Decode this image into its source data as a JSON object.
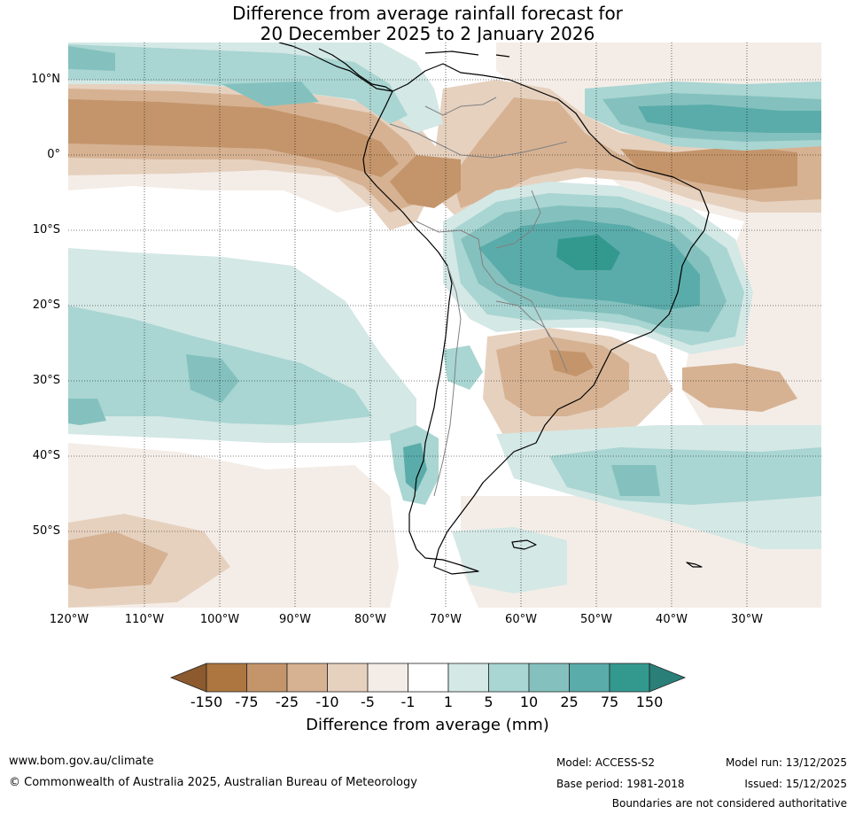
{
  "title": {
    "line1": "Difference from average rainfall forecast for",
    "line2": "20 December 2025 to 2 January 2026"
  },
  "map": {
    "lat_labels": [
      "10°N",
      "0°",
      "10°S",
      "20°S",
      "30°S",
      "40°S",
      "50°S"
    ],
    "lon_labels": [
      "120°W",
      "110°W",
      "100°W",
      "90°W",
      "80°W",
      "70°W",
      "60°W",
      "50°W",
      "40°W",
      "30°W"
    ]
  },
  "colorbar": {
    "ticks": [
      "-150",
      "-75",
      "-25",
      "-10",
      "-5",
      "-1",
      "1",
      "5",
      "10",
      "25",
      "75",
      "150"
    ],
    "colors": [
      "#8c5a2e",
      "#ad7640",
      "#c4956b",
      "#d6b293",
      "#e6d1bf",
      "#f4ede7",
      "#ffffff",
      "#d4e8e6",
      "#a9d5d2",
      "#84c1be",
      "#5aacaa",
      "#33998f",
      "#2a7f79"
    ],
    "label": "Difference from average (mm)"
  },
  "footer": {
    "website": "www.bom.gov.au/climate",
    "copyright": "© Commonwealth of Australia 2025, Australian Bureau of Meteorology",
    "model": "Model: ACCESS-S2",
    "base_period": "Base period: 1981-2018",
    "model_run": "Model run: 13/12/2025",
    "issued": "Issued: 15/12/2025",
    "disclaimer": "Boundaries are not considered authoritative"
  }
}
